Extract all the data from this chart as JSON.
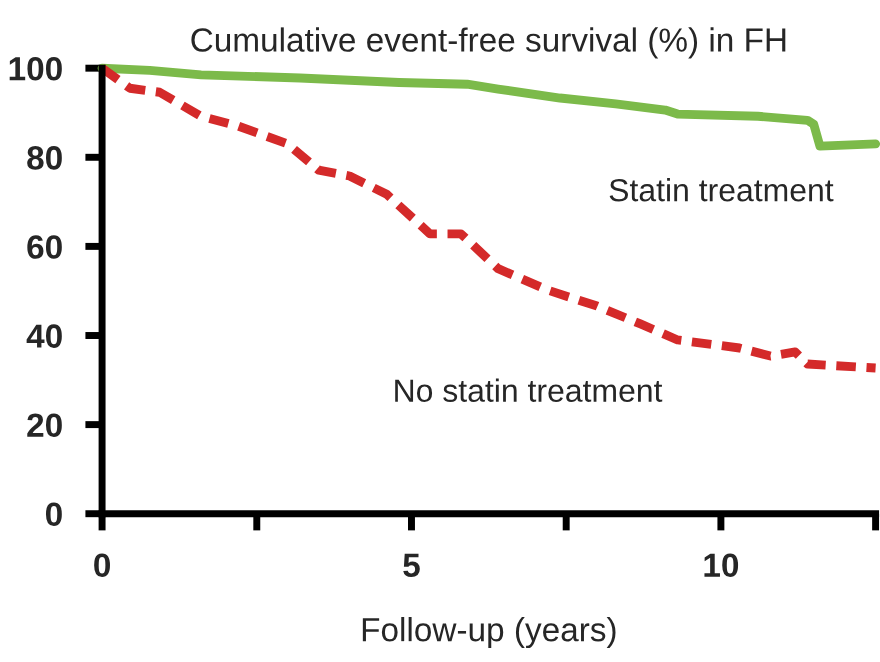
{
  "chart_data": {
    "type": "line",
    "title": "Cumulative event-free survival (%) in FH",
    "xlabel": "Follow-up (years)",
    "xlim": [
      0,
      12.5
    ],
    "ylim": [
      0,
      100
    ],
    "xticks": [
      0,
      {
        "value": 2.5,
        "label": null
      },
      5,
      {
        "value": 7.5,
        "label": null
      },
      10,
      {
        "value": 12.5,
        "label": null
      }
    ],
    "yticks": [
      0,
      20,
      40,
      60,
      80,
      100
    ],
    "grid": false,
    "legend": false,
    "marker": "none",
    "series": [
      {
        "name": "Statin treatment",
        "color": "#7cba4a",
        "line_style": "solid",
        "x": [
          0,
          0.77,
          1.6,
          3.2,
          4.8,
          5.9,
          6.4,
          7.4,
          8.3,
          9.1,
          9.3,
          10.6,
          11.4,
          11.5,
          11.6,
          12.5
        ],
        "values": [
          100,
          99.5,
          98.5,
          97.8,
          96.8,
          96.4,
          95.3,
          93.3,
          92,
          90.6,
          89.7,
          89.2,
          88.3,
          87.4,
          82.5,
          83
        ]
      },
      {
        "name": "No statin treatment",
        "color": "#d42a2a",
        "line_style": "dashed",
        "x": [
          0,
          0.45,
          0.93,
          1.6,
          2.2,
          3.0,
          3.5,
          4.0,
          4.6,
          5.3,
          5.8,
          6.4,
          7.2,
          8.0,
          8.7,
          9.3,
          10.3,
          10.8,
          11.2,
          11.4,
          12.5
        ],
        "values": [
          100,
          95.5,
          94.6,
          89.2,
          87,
          83,
          77.1,
          75.8,
          71.7,
          62.8,
          62.8,
          55,
          50.2,
          46.6,
          42.6,
          39,
          37.2,
          35.4,
          36.3,
          33.6,
          32.7
        ]
      }
    ]
  }
}
